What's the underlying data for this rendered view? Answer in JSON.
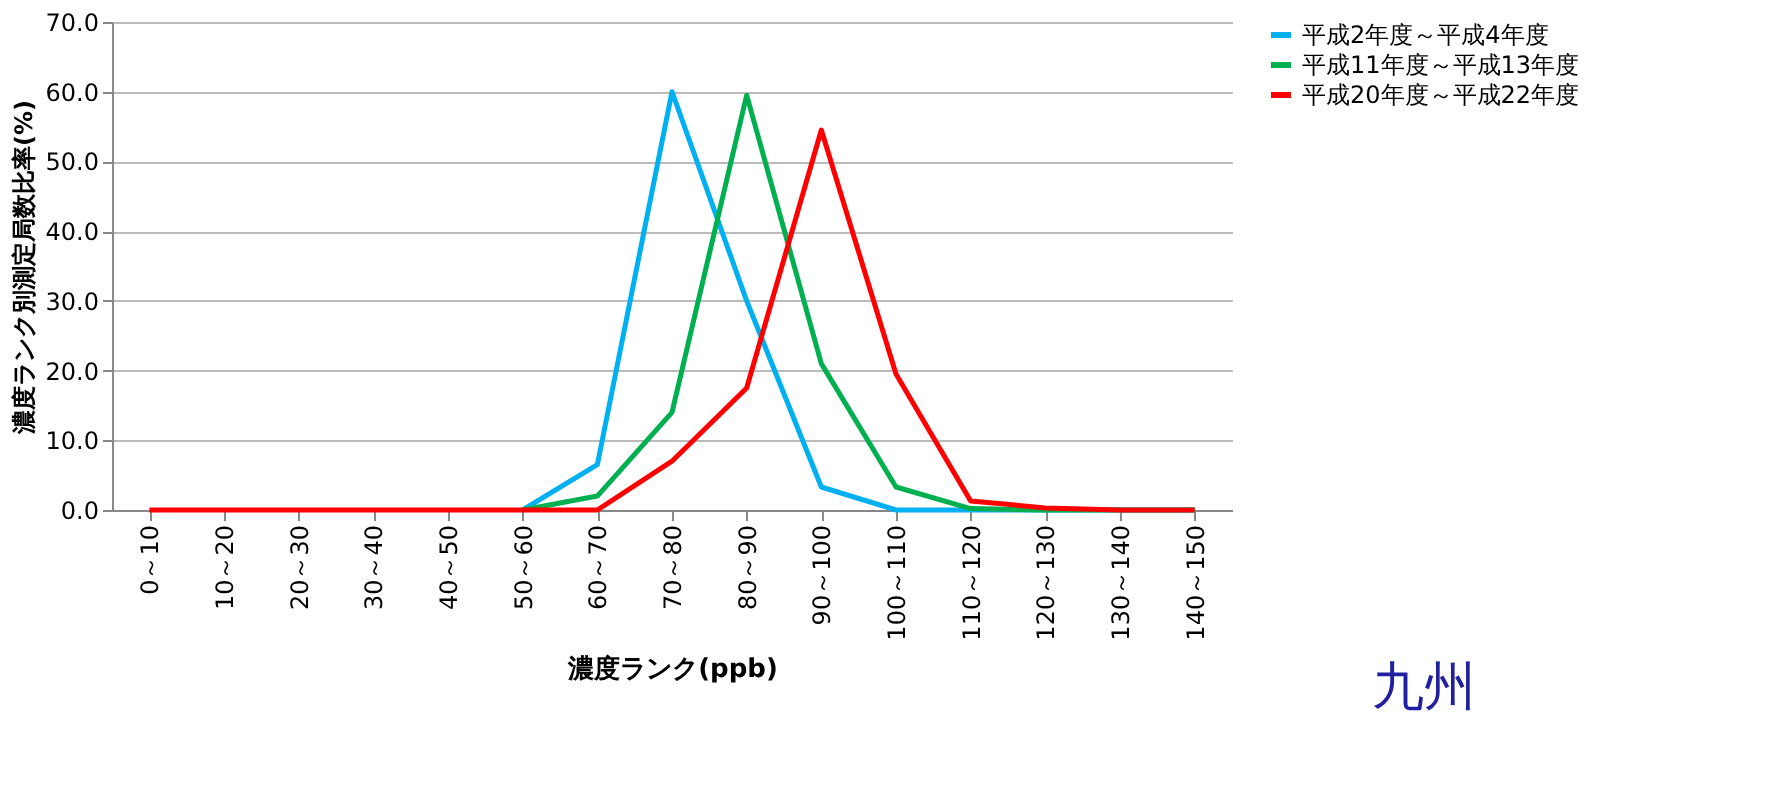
{
  "chart_data": {
    "type": "line",
    "xlabel": "濃度ランク(ppb)",
    "ylabel": "濃度ランク別測定局数比率(%)",
    "categories": [
      "0～10",
      "10～20",
      "20～30",
      "30～40",
      "40～50",
      "50～60",
      "60～70",
      "70～80",
      "80～90",
      "90～100",
      "100～110",
      "110～120",
      "120～130",
      "130～140",
      "140～150"
    ],
    "series": [
      {
        "name": "平成2年度～平成4年度",
        "color": "#00b0f0",
        "values": [
          null,
          null,
          null,
          null,
          null,
          0,
          6.5,
          60.0,
          30.0,
          3.3,
          0,
          0,
          0,
          0,
          0
        ]
      },
      {
        "name": "平成11年度～平成13年度",
        "color": "#00b050",
        "values": [
          null,
          null,
          null,
          null,
          null,
          0,
          2.0,
          14.0,
          59.5,
          21.0,
          3.3,
          0.2,
          0,
          0,
          0
        ]
      },
      {
        "name": "平成20年度～平成22年度",
        "color": "#ff0000",
        "values": [
          0,
          0,
          0,
          0,
          0,
          0,
          0,
          7.0,
          17.5,
          54.5,
          19.5,
          1.3,
          0.3,
          0,
          0
        ]
      }
    ],
    "ylim": [
      0,
      70
    ],
    "yticks": [
      {
        "value": 0,
        "label": "0.0"
      },
      {
        "value": 10,
        "label": "10.0"
      },
      {
        "value": 20,
        "label": "20.0"
      },
      {
        "value": 30,
        "label": "30.0"
      },
      {
        "value": 40,
        "label": "40.0"
      },
      {
        "value": 50,
        "label": "50.0"
      },
      {
        "value": 60,
        "label": "60.0"
      },
      {
        "value": 70,
        "label": "70.0"
      }
    ],
    "grid": "y",
    "legend": "right",
    "marker": "none",
    "line_style": "solid",
    "annotations": [
      "九州"
    ]
  }
}
